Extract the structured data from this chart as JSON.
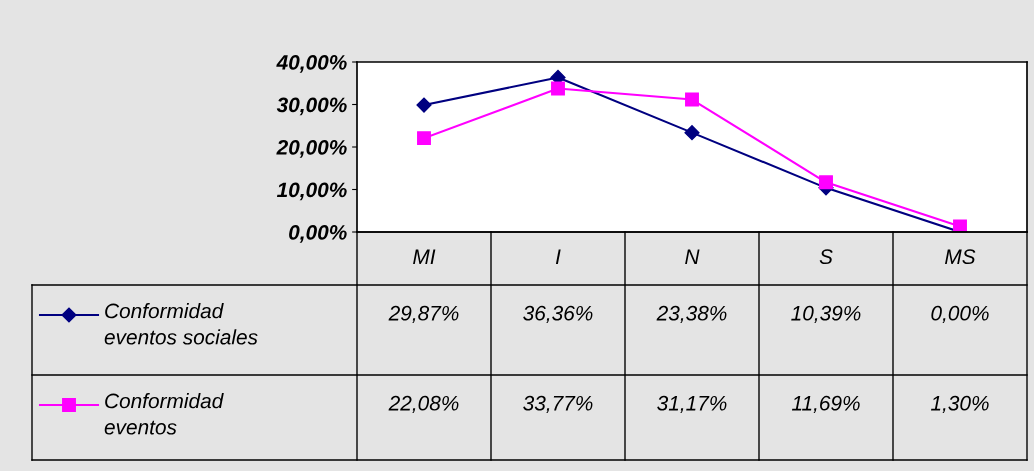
{
  "chart_data": {
    "type": "line",
    "categories": [
      "MI",
      "I",
      "N",
      "S",
      "MS"
    ],
    "series": [
      {
        "name": "Conformidad eventos sociales",
        "color": "#000080",
        "marker": "diamond",
        "values": [
          29.87,
          36.36,
          23.38,
          10.39,
          0.0
        ],
        "value_labels": [
          "29,87%",
          "36,36%",
          "23,38%",
          "10,39%",
          "0,00%"
        ]
      },
      {
        "name": "Conformidad eventos",
        "color": "#ff00ff",
        "marker": "square",
        "values": [
          22.08,
          33.77,
          31.17,
          11.69,
          1.3
        ],
        "value_labels": [
          "22,08%",
          "33,77%",
          "31,17%",
          "11,69%",
          "1,30%"
        ]
      }
    ],
    "ylim": [
      0,
      40
    ],
    "yticks": [
      {
        "value": 0,
        "label": "0,00%"
      },
      {
        "value": 10,
        "label": "10,00%"
      },
      {
        "value": 20,
        "label": "20,00%"
      },
      {
        "value": 30,
        "label": "30,00%"
      },
      {
        "value": 40,
        "label": "40,00%"
      }
    ],
    "grid": false,
    "legend": "bottom",
    "line_style": "solid"
  }
}
